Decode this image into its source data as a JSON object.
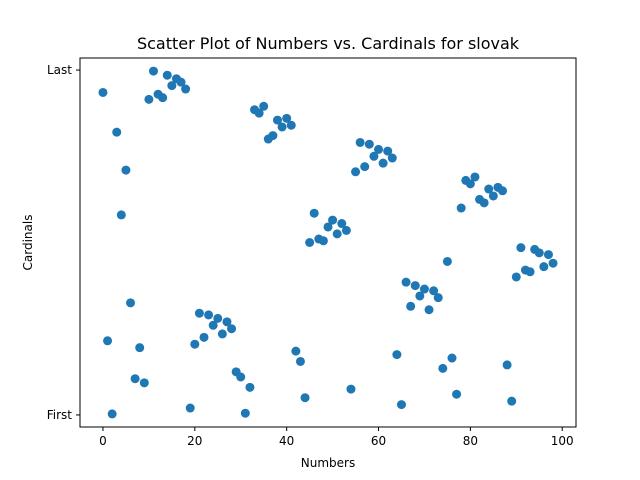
{
  "chart_data": {
    "type": "scatter",
    "title": "Scatter Plot of Numbers vs. Cardinals for slovak",
    "xlabel": "Numbers",
    "ylabel": "Cardinals",
    "xlim": [
      -5,
      103
    ],
    "ylim": [
      -0.035,
      1.035
    ],
    "xticks": [
      0,
      20,
      40,
      60,
      80,
      100
    ],
    "yticks": [
      {
        "value": 0,
        "label": "First"
      },
      {
        "value": 1,
        "label": "Last"
      }
    ],
    "marker_color": "#1f77b4",
    "grid": false,
    "points": [
      [
        0,
        0.935
      ],
      [
        1,
        0.215
      ],
      [
        2,
        0.003
      ],
      [
        3,
        0.82
      ],
      [
        4,
        0.58
      ],
      [
        5,
        0.71
      ],
      [
        6,
        0.325
      ],
      [
        7,
        0.105
      ],
      [
        8,
        0.195
      ],
      [
        9,
        0.093
      ],
      [
        10,
        0.915
      ],
      [
        11,
        0.997
      ],
      [
        12,
        0.93
      ],
      [
        13,
        0.92
      ],
      [
        14,
        0.985
      ],
      [
        15,
        0.955
      ],
      [
        16,
        0.975
      ],
      [
        17,
        0.965
      ],
      [
        18,
        0.945
      ],
      [
        19,
        0.02
      ],
      [
        20,
        0.205
      ],
      [
        21,
        0.295
      ],
      [
        22,
        0.225
      ],
      [
        23,
        0.29
      ],
      [
        24,
        0.26
      ],
      [
        25,
        0.28
      ],
      [
        26,
        0.235
      ],
      [
        27,
        0.27
      ],
      [
        28,
        0.25
      ],
      [
        29,
        0.125
      ],
      [
        30,
        0.11
      ],
      [
        31,
        0.005
      ],
      [
        32,
        0.08
      ],
      [
        33,
        0.885
      ],
      [
        34,
        0.875
      ],
      [
        35,
        0.895
      ],
      [
        36,
        0.8
      ],
      [
        37,
        0.81
      ],
      [
        38,
        0.855
      ],
      [
        39,
        0.835
      ],
      [
        40,
        0.86
      ],
      [
        41,
        0.84
      ],
      [
        42,
        0.185
      ],
      [
        43,
        0.155
      ],
      [
        44,
        0.05
      ],
      [
        45,
        0.5
      ],
      [
        46,
        0.585
      ],
      [
        47,
        0.51
      ],
      [
        48,
        0.505
      ],
      [
        49,
        0.545
      ],
      [
        50,
        0.565
      ],
      [
        51,
        0.525
      ],
      [
        52,
        0.555
      ],
      [
        53,
        0.535
      ],
      [
        54,
        0.075
      ],
      [
        55,
        0.705
      ],
      [
        56,
        0.79
      ],
      [
        57,
        0.72
      ],
      [
        58,
        0.785
      ],
      [
        59,
        0.75
      ],
      [
        60,
        0.77
      ],
      [
        61,
        0.73
      ],
      [
        62,
        0.765
      ],
      [
        63,
        0.745
      ],
      [
        64,
        0.175
      ],
      [
        65,
        0.03
      ],
      [
        66,
        0.385
      ],
      [
        67,
        0.315
      ],
      [
        68,
        0.375
      ],
      [
        69,
        0.345
      ],
      [
        70,
        0.365
      ],
      [
        71,
        0.305
      ],
      [
        72,
        0.36
      ],
      [
        73,
        0.34
      ],
      [
        74,
        0.135
      ],
      [
        75,
        0.445
      ],
      [
        76,
        0.165
      ],
      [
        77,
        0.06
      ],
      [
        78,
        0.6
      ],
      [
        79,
        0.68
      ],
      [
        80,
        0.67
      ],
      [
        81,
        0.69
      ],
      [
        82,
        0.625
      ],
      [
        83,
        0.615
      ],
      [
        84,
        0.655
      ],
      [
        85,
        0.635
      ],
      [
        86,
        0.66
      ],
      [
        87,
        0.65
      ],
      [
        88,
        0.145
      ],
      [
        89,
        0.04
      ],
      [
        90,
        0.4
      ],
      [
        91,
        0.485
      ],
      [
        92,
        0.42
      ],
      [
        93,
        0.415
      ],
      [
        94,
        0.48
      ],
      [
        95,
        0.47
      ],
      [
        96,
        0.43
      ],
      [
        97,
        0.465
      ],
      [
        98,
        0.44
      ]
    ]
  }
}
